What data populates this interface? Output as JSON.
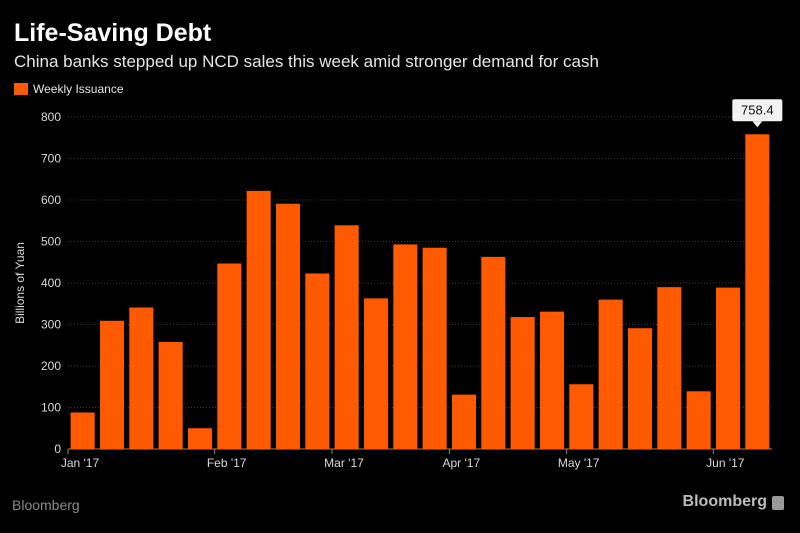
{
  "header": {
    "title": "Life-Saving Debt",
    "subtitle": "China banks stepped up NCD sales this week amid stronger demand for cash"
  },
  "footer": {
    "source_left": "Bloomberg",
    "brand_right": "Bloomberg"
  },
  "colors": {
    "bar": "#ff5a00",
    "background": "#000000",
    "grid": "#3a3a3a",
    "axis_text": "#d9d9d9"
  },
  "chart_data": {
    "type": "bar",
    "title": "Life-Saving Debt",
    "subtitle": "China banks stepped up NCD sales this week amid stronger demand for cash",
    "xlabel": "",
    "ylabel": "Billions of Yuan",
    "ylim": [
      0,
      800
    ],
    "yticks": [
      0,
      100,
      200,
      300,
      400,
      500,
      600,
      700,
      800
    ],
    "grid": true,
    "legend": {
      "position": "top-left",
      "entries": [
        "Weekly Issuance"
      ]
    },
    "x_tick_labels": [
      {
        "label": "Jan '17",
        "at_index": 0
      },
      {
        "label": "Feb '17",
        "at_index": 5
      },
      {
        "label": "Mar '17",
        "at_index": 9
      },
      {
        "label": "Apr '17",
        "at_index": 13
      },
      {
        "label": "May '17",
        "at_index": 17
      },
      {
        "label": "Jun '17",
        "at_index": 22
      }
    ],
    "series": [
      {
        "name": "Weekly Issuance",
        "values": [
          88,
          309,
          341,
          258,
          50,
          447,
          622,
          591,
          423,
          539,
          363,
          493,
          485,
          131,
          463,
          318,
          331,
          156,
          360,
          291,
          390,
          139,
          389,
          758.4
        ]
      }
    ],
    "annotations": [
      {
        "text": "758.4",
        "at_index": 23,
        "value": 758.4
      }
    ]
  }
}
